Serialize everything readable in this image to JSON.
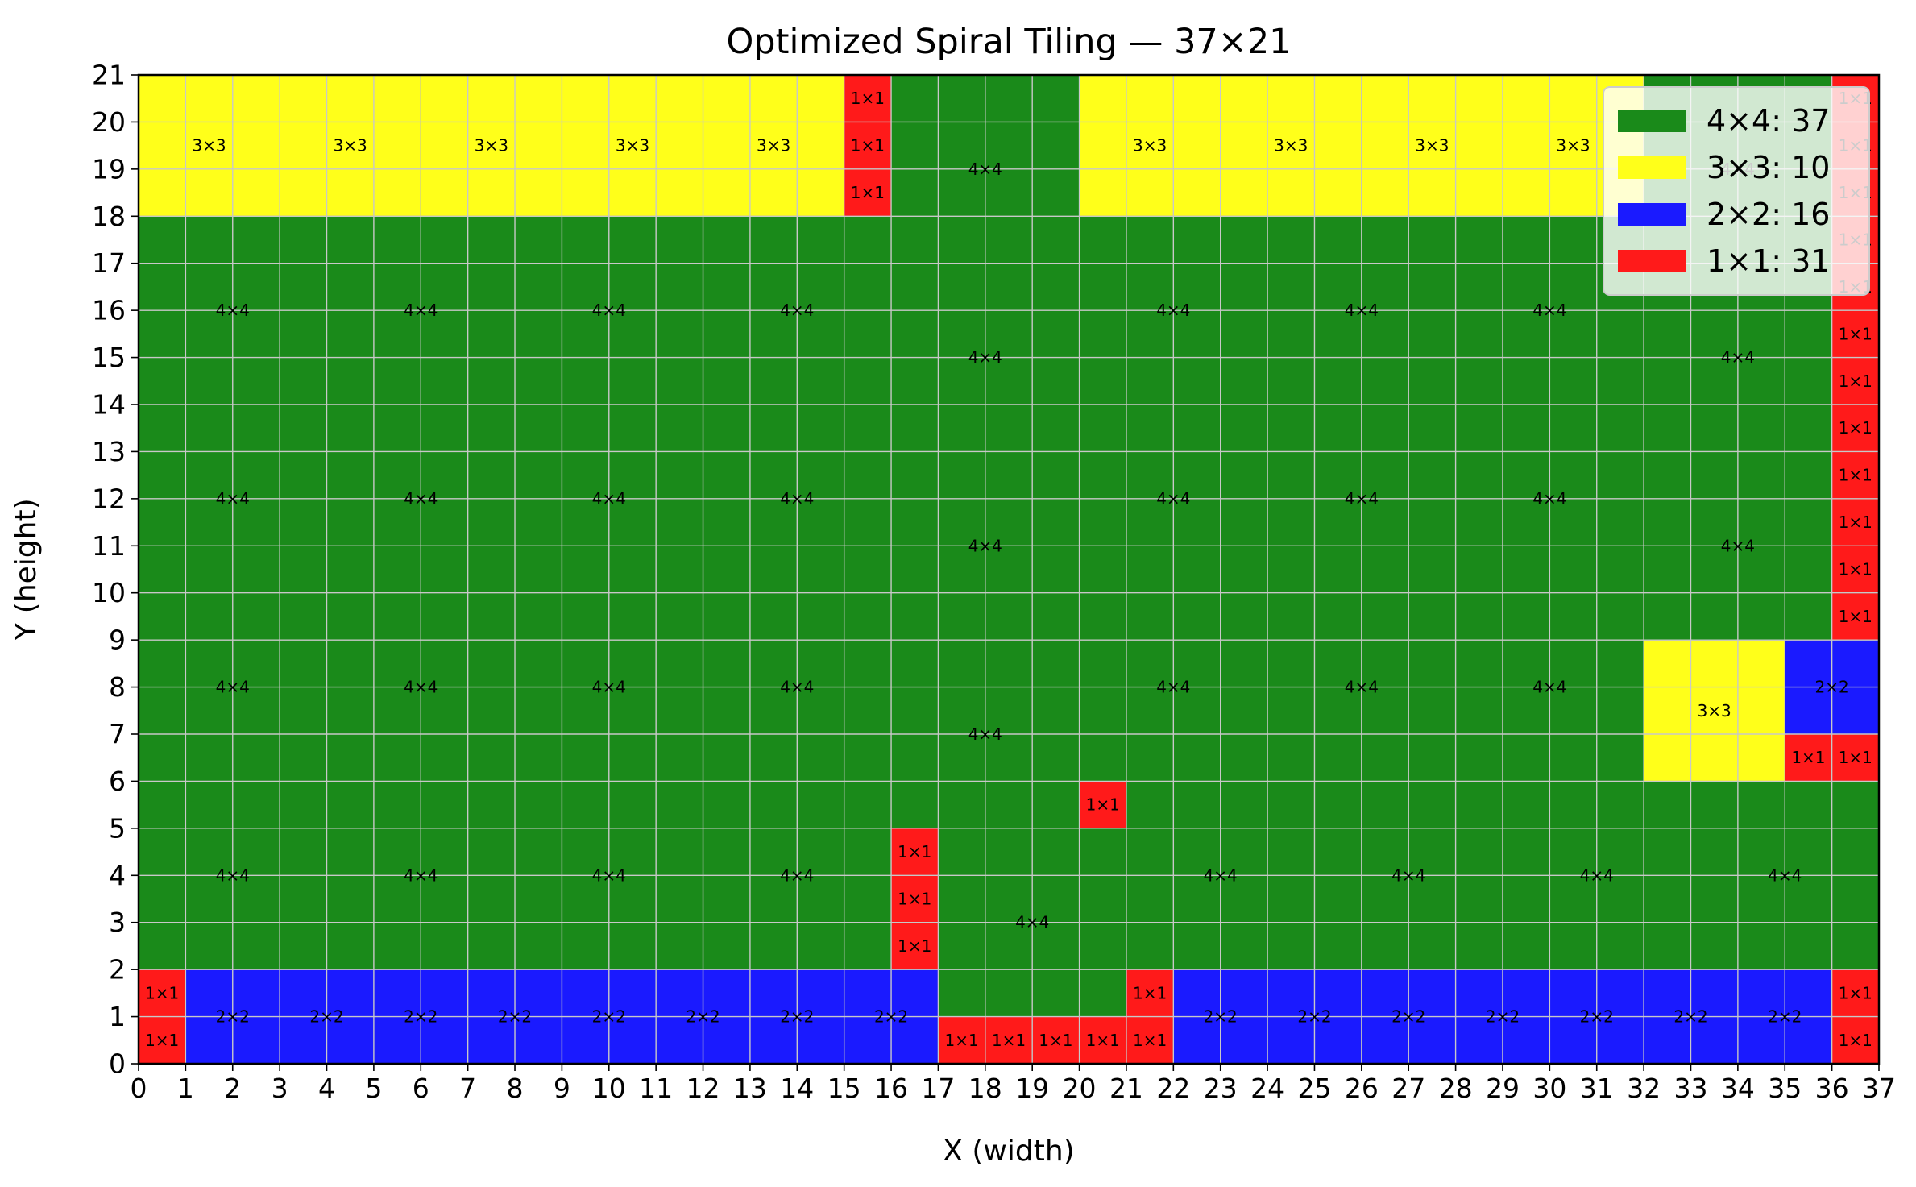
{
  "chart_data": {
    "type": "heatmap",
    "title": "Optimized Spiral Tiling — 37×21",
    "xlabel": "X (width)",
    "ylabel": "Y (height)",
    "xlim": [
      0,
      37
    ],
    "ylim": [
      0,
      21
    ],
    "grid": true,
    "legend_position": "top-right",
    "x_ticks": [
      0,
      1,
      2,
      3,
      4,
      5,
      6,
      7,
      8,
      9,
      10,
      11,
      12,
      13,
      14,
      15,
      16,
      17,
      18,
      19,
      20,
      21,
      22,
      23,
      24,
      25,
      26,
      27,
      28,
      29,
      30,
      31,
      32,
      33,
      34,
      35,
      36,
      37
    ],
    "y_ticks": [
      0,
      1,
      2,
      3,
      4,
      5,
      6,
      7,
      8,
      9,
      10,
      11,
      12,
      13,
      14,
      15,
      16,
      17,
      18,
      19,
      20,
      21
    ],
    "tile_types": [
      {
        "size": 4,
        "label": "4×4",
        "color": "#1a8a1a",
        "count": 37,
        "legend": "4×4: 37"
      },
      {
        "size": 3,
        "label": "3×3",
        "color": "#ffff1a",
        "count": 10,
        "legend": "3×3: 10"
      },
      {
        "size": 2,
        "label": "2×2",
        "color": "#1a1aff",
        "count": 16,
        "legend": "2×2: 16"
      },
      {
        "size": 1,
        "label": "1×1",
        "color": "#ff1a1a",
        "count": 31,
        "legend": "1×1: 31"
      }
    ],
    "tiles": [
      [
        0,
        0,
        1
      ],
      [
        0,
        1,
        1
      ],
      [
        1,
        0,
        2
      ],
      [
        3,
        0,
        2
      ],
      [
        5,
        0,
        2
      ],
      [
        7,
        0,
        2
      ],
      [
        9,
        0,
        2
      ],
      [
        11,
        0,
        2
      ],
      [
        13,
        0,
        2
      ],
      [
        15,
        0,
        2
      ],
      [
        17,
        0,
        1
      ],
      [
        18,
        0,
        1
      ],
      [
        19,
        0,
        1
      ],
      [
        20,
        0,
        1
      ],
      [
        21,
        0,
        1
      ],
      [
        21,
        1,
        1
      ],
      [
        22,
        0,
        2
      ],
      [
        24,
        0,
        2
      ],
      [
        26,
        0,
        2
      ],
      [
        28,
        0,
        2
      ],
      [
        30,
        0,
        2
      ],
      [
        32,
        0,
        2
      ],
      [
        34,
        0,
        2
      ],
      [
        36,
        0,
        1
      ],
      [
        36,
        1,
        1
      ],
      [
        0,
        2,
        4
      ],
      [
        4,
        2,
        4
      ],
      [
        8,
        2,
        4
      ],
      [
        12,
        2,
        4
      ],
      [
        16,
        2,
        1
      ],
      [
        16,
        3,
        1
      ],
      [
        16,
        4,
        1
      ],
      [
        17,
        1,
        4
      ],
      [
        20,
        5,
        1
      ],
      [
        21,
        2,
        4
      ],
      [
        25,
        2,
        4
      ],
      [
        29,
        2,
        4
      ],
      [
        33,
        2,
        4
      ],
      [
        35,
        6,
        1
      ],
      [
        36,
        6,
        1
      ],
      [
        32,
        6,
        3
      ],
      [
        35,
        7,
        2
      ],
      [
        0,
        6,
        4
      ],
      [
        4,
        6,
        4
      ],
      [
        8,
        6,
        4
      ],
      [
        12,
        6,
        4
      ],
      [
        16,
        5,
        4
      ],
      [
        20,
        6,
        4
      ],
      [
        24,
        6,
        4
      ],
      [
        28,
        6,
        4
      ],
      [
        0,
        10,
        4
      ],
      [
        4,
        10,
        4
      ],
      [
        8,
        10,
        4
      ],
      [
        12,
        10,
        4
      ],
      [
        16,
        9,
        4
      ],
      [
        20,
        10,
        4
      ],
      [
        24,
        10,
        4
      ],
      [
        28,
        10,
        4
      ],
      [
        32,
        9,
        4
      ],
      [
        0,
        14,
        4
      ],
      [
        4,
        14,
        4
      ],
      [
        8,
        14,
        4
      ],
      [
        12,
        14,
        4
      ],
      [
        16,
        13,
        4
      ],
      [
        20,
        14,
        4
      ],
      [
        24,
        14,
        4
      ],
      [
        28,
        14,
        4
      ],
      [
        32,
        13,
        4
      ],
      [
        16,
        17,
        4
      ],
      [
        32,
        17,
        4
      ],
      [
        36,
        9,
        1
      ],
      [
        36,
        10,
        1
      ],
      [
        36,
        11,
        1
      ],
      [
        36,
        12,
        1
      ],
      [
        36,
        13,
        1
      ],
      [
        36,
        14,
        1
      ],
      [
        36,
        15,
        1
      ],
      [
        36,
        16,
        1
      ],
      [
        36,
        17,
        1
      ],
      [
        36,
        18,
        1
      ],
      [
        36,
        19,
        1
      ],
      [
        36,
        20,
        1
      ],
      [
        0,
        18,
        3
      ],
      [
        3,
        18,
        3
      ],
      [
        6,
        18,
        3
      ],
      [
        9,
        18,
        3
      ],
      [
        12,
        18,
        3
      ],
      [
        15,
        18,
        1
      ],
      [
        15,
        19,
        1
      ],
      [
        15,
        20,
        1
      ],
      [
        20,
        18,
        3
      ],
      [
        23,
        18,
        3
      ],
      [
        26,
        18,
        3
      ],
      [
        29,
        18,
        3
      ]
    ]
  }
}
